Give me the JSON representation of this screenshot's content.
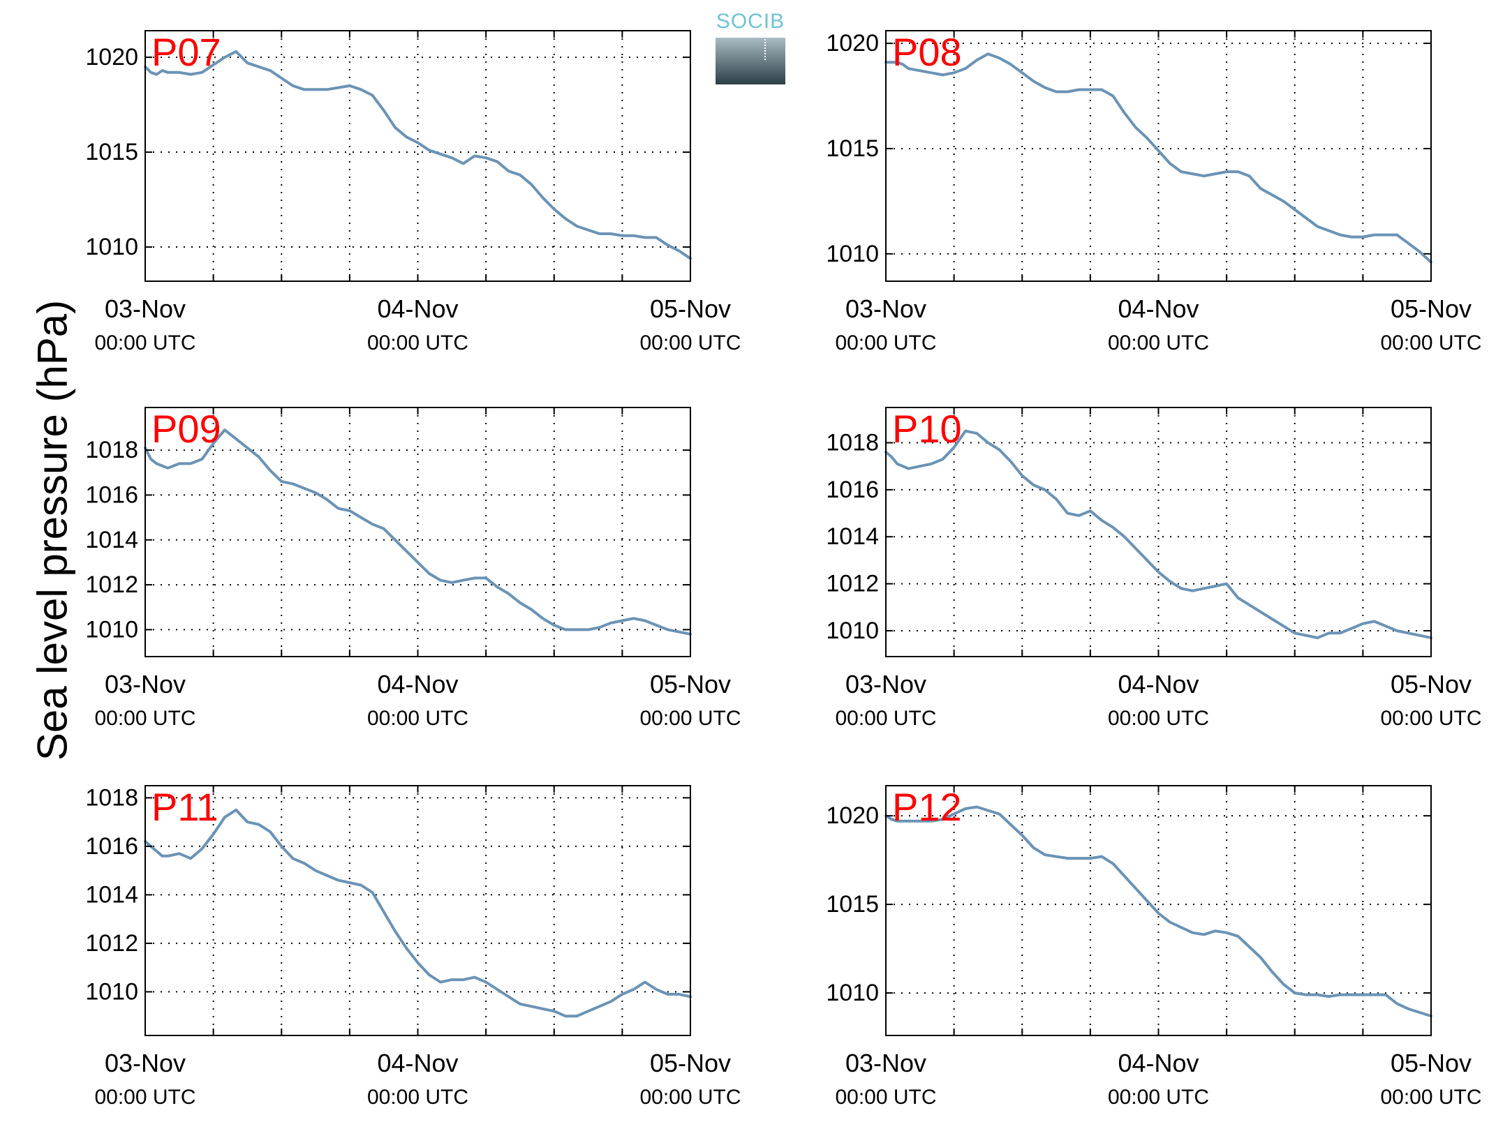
{
  "figure": {
    "ylabel": "Sea level pressure (hPa)",
    "logo_text": "SOCIB",
    "colors": {
      "line": "#6b93b5",
      "panel_label": "#ff0000",
      "grid": "#000000"
    }
  },
  "chart_data": [
    {
      "type": "line",
      "title": "P07",
      "ylim": [
        1008.2,
        1021.4
      ],
      "yticks": [
        1010,
        1015,
        1020
      ],
      "xlim": [
        0,
        48
      ],
      "xticks": [
        0,
        24,
        48
      ],
      "xtick_labels": [
        [
          "03-Nov",
          "00:00 UTC"
        ],
        [
          "04-Nov",
          "00:00 UTC"
        ],
        [
          "05-Nov",
          "00:00 UTC"
        ]
      ],
      "grid": true,
      "xlabel": "",
      "ylabel": "Sea level pressure (hPa)",
      "series": [
        {
          "x": [
            0,
            0.5,
            1,
            1.5,
            2,
            3,
            4,
            5,
            6,
            7,
            8,
            9,
            10,
            11,
            12,
            13,
            14,
            15,
            16,
            17,
            18,
            19,
            20,
            21,
            22,
            23,
            24,
            25,
            26,
            27,
            28,
            29,
            30,
            31,
            32,
            33,
            34,
            35,
            36,
            37,
            38,
            39,
            40,
            41,
            42,
            43,
            44,
            45,
            46,
            47,
            48
          ],
          "values": [
            1019.5,
            1019.2,
            1019.1,
            1019.3,
            1019.2,
            1019.2,
            1019.1,
            1019.2,
            1019.6,
            1020,
            1020.3,
            1019.7,
            1019.5,
            1019.3,
            1018.9,
            1018.5,
            1018.3,
            1018.3,
            1018.3,
            1018.4,
            1018.5,
            1018.3,
            1018,
            1017.2,
            1016.3,
            1015.8,
            1015.5,
            1015.1,
            1014.9,
            1014.7,
            1014.4,
            1014.8,
            1014.7,
            1014.5,
            1014,
            1013.8,
            1013.3,
            1012.6,
            1012,
            1011.5,
            1011.1,
            1010.9,
            1010.7,
            1010.7,
            1010.6,
            1010.6,
            1010.5,
            1010.5,
            1010.1,
            1009.8,
            1009.4
          ]
        }
      ]
    },
    {
      "type": "line",
      "title": "P08",
      "ylim": [
        1008.7,
        1020.6
      ],
      "yticks": [
        1010,
        1015,
        1020
      ],
      "xlim": [
        0,
        48
      ],
      "xticks": [
        0,
        24,
        48
      ],
      "xtick_labels": [
        [
          "03-Nov",
          "00:00 UTC"
        ],
        [
          "04-Nov",
          "00:00 UTC"
        ],
        [
          "05-Nov",
          "00:00 UTC"
        ]
      ],
      "grid": true,
      "xlabel": "",
      "ylabel": "Sea level pressure (hPa)",
      "series": [
        {
          "x": [
            0,
            0.5,
            1,
            1.5,
            2,
            3,
            4,
            5,
            6,
            7,
            8,
            9,
            10,
            11,
            12,
            13,
            14,
            15,
            16,
            17,
            18,
            19,
            20,
            21,
            22,
            23,
            24,
            25,
            26,
            27,
            28,
            29,
            30,
            31,
            32,
            33,
            34,
            35,
            36,
            37,
            38,
            39,
            40,
            41,
            42,
            43,
            44,
            45,
            46,
            47,
            48
          ],
          "values": [
            1019.1,
            1019.1,
            1019.1,
            1019,
            1018.8,
            1018.7,
            1018.6,
            1018.5,
            1018.6,
            1018.8,
            1019.2,
            1019.5,
            1019.3,
            1019,
            1018.6,
            1018.2,
            1017.9,
            1017.7,
            1017.7,
            1017.8,
            1017.8,
            1017.8,
            1017.5,
            1016.7,
            1016,
            1015.5,
            1014.9,
            1014.3,
            1013.9,
            1013.8,
            1013.7,
            1013.8,
            1013.9,
            1013.9,
            1013.7,
            1013.1,
            1012.8,
            1012.5,
            1012.1,
            1011.7,
            1011.3,
            1011.1,
            1010.9,
            1010.8,
            1010.8,
            1010.9,
            1010.9,
            1010.9,
            1010.5,
            1010.1,
            1009.6
          ]
        }
      ]
    },
    {
      "type": "line",
      "title": "P09",
      "ylim": [
        1008.8,
        1019.9
      ],
      "yticks": [
        1010,
        1012,
        1014,
        1016,
        1018
      ],
      "xlim": [
        0,
        48
      ],
      "xticks": [
        0,
        24,
        48
      ],
      "xtick_labels": [
        [
          "03-Nov",
          "00:00 UTC"
        ],
        [
          "04-Nov",
          "00:00 UTC"
        ],
        [
          "05-Nov",
          "00:00 UTC"
        ]
      ],
      "grid": true,
      "xlabel": "",
      "ylabel": "Sea level pressure (hPa)",
      "series": [
        {
          "x": [
            0,
            0.5,
            1,
            1.5,
            2,
            3,
            4,
            5,
            6,
            7,
            8,
            9,
            10,
            11,
            12,
            13,
            14,
            15,
            16,
            17,
            18,
            19,
            20,
            21,
            22,
            23,
            24,
            25,
            26,
            27,
            28,
            29,
            30,
            31,
            32,
            33,
            34,
            35,
            36,
            37,
            38,
            39,
            40,
            41,
            42,
            43,
            44,
            45,
            46,
            47,
            48
          ],
          "values": [
            1018.1,
            1017.6,
            1017.4,
            1017.3,
            1017.2,
            1017.4,
            1017.4,
            1017.6,
            1018.3,
            1018.9,
            1018.5,
            1018.1,
            1017.7,
            1017.1,
            1016.6,
            1016.5,
            1016.3,
            1016.1,
            1015.8,
            1015.4,
            1015.3,
            1015,
            1014.7,
            1014.5,
            1014,
            1013.5,
            1013,
            1012.5,
            1012.2,
            1012.1,
            1012.2,
            1012.3,
            1012.3,
            1011.9,
            1011.6,
            1011.2,
            1010.9,
            1010.5,
            1010.2,
            1010,
            1010,
            1010,
            1010.1,
            1010.3,
            1010.4,
            1010.5,
            1010.4,
            1010.2,
            1010,
            1009.9,
            1009.8
          ]
        }
      ]
    },
    {
      "type": "line",
      "title": "P10",
      "ylim": [
        1008.9,
        1019.5
      ],
      "yticks": [
        1010,
        1012,
        1014,
        1016,
        1018
      ],
      "xlim": [
        0,
        48
      ],
      "xticks": [
        0,
        24,
        48
      ],
      "xtick_labels": [
        [
          "03-Nov",
          "00:00 UTC"
        ],
        [
          "04-Nov",
          "00:00 UTC"
        ],
        [
          "05-Nov",
          "00:00 UTC"
        ]
      ],
      "grid": true,
      "xlabel": "",
      "ylabel": "Sea level pressure (hPa)",
      "series": [
        {
          "x": [
            0,
            0.5,
            1,
            1.5,
            2,
            3,
            4,
            5,
            6,
            7,
            8,
            9,
            10,
            11,
            12,
            13,
            14,
            15,
            16,
            17,
            18,
            19,
            20,
            21,
            22,
            23,
            24,
            25,
            26,
            27,
            28,
            29,
            30,
            31,
            32,
            33,
            34,
            35,
            36,
            37,
            38,
            39,
            40,
            41,
            42,
            43,
            44,
            45,
            46,
            47,
            48
          ],
          "values": [
            1017.6,
            1017.4,
            1017.1,
            1017,
            1016.9,
            1017,
            1017.1,
            1017.3,
            1017.8,
            1018.5,
            1018.4,
            1018,
            1017.7,
            1017.2,
            1016.6,
            1016.2,
            1016,
            1015.6,
            1015,
            1014.9,
            1015.1,
            1014.7,
            1014.4,
            1014,
            1013.5,
            1013,
            1012.5,
            1012.1,
            1011.8,
            1011.7,
            1011.8,
            1011.9,
            1012,
            1011.4,
            1011.1,
            1010.8,
            1010.5,
            1010.2,
            1009.9,
            1009.8,
            1009.7,
            1009.9,
            1009.9,
            1010.1,
            1010.3,
            1010.4,
            1010.2,
            1010,
            1009.9,
            1009.8,
            1009.7
          ]
        }
      ]
    },
    {
      "type": "line",
      "title": "P11",
      "ylim": [
        1008.2,
        1018.5
      ],
      "yticks": [
        1010,
        1012,
        1014,
        1016,
        1018
      ],
      "xlim": [
        0,
        48
      ],
      "xticks": [
        0,
        24,
        48
      ],
      "xtick_labels": [
        [
          "03-Nov",
          "00:00 UTC"
        ],
        [
          "04-Nov",
          "00:00 UTC"
        ],
        [
          "05-Nov",
          "00:00 UTC"
        ]
      ],
      "grid": true,
      "xlabel": "",
      "ylabel": "Sea level pressure (hPa)",
      "series": [
        {
          "x": [
            0,
            0.5,
            1,
            1.5,
            2,
            3,
            4,
            5,
            6,
            7,
            8,
            9,
            10,
            11,
            12,
            13,
            14,
            15,
            16,
            17,
            18,
            19,
            20,
            21,
            22,
            23,
            24,
            25,
            26,
            27,
            28,
            29,
            30,
            31,
            32,
            33,
            34,
            35,
            36,
            37,
            38,
            39,
            40,
            41,
            42,
            43,
            44,
            45,
            46,
            47,
            48
          ],
          "values": [
            1016.2,
            1016,
            1015.8,
            1015.6,
            1015.6,
            1015.7,
            1015.5,
            1015.9,
            1016.5,
            1017.2,
            1017.5,
            1017,
            1016.9,
            1016.6,
            1016,
            1015.5,
            1015.3,
            1015,
            1014.8,
            1014.6,
            1014.5,
            1014.4,
            1014.1,
            1013.3,
            1012.5,
            1011.8,
            1011.2,
            1010.7,
            1010.4,
            1010.5,
            1010.5,
            1010.6,
            1010.4,
            1010.1,
            1009.8,
            1009.5,
            1009.4,
            1009.3,
            1009.2,
            1009,
            1009,
            1009.2,
            1009.4,
            1009.6,
            1009.9,
            1010.1,
            1010.4,
            1010.1,
            1009.9,
            1009.9,
            1009.8
          ]
        }
      ]
    },
    {
      "type": "line",
      "title": "P12",
      "ylim": [
        1007.6,
        1021.7
      ],
      "yticks": [
        1010,
        1015,
        1020
      ],
      "xlim": [
        0,
        48
      ],
      "xticks": [
        0,
        24,
        48
      ],
      "xtick_labels": [
        [
          "03-Nov",
          "00:00 UTC"
        ],
        [
          "04-Nov",
          "00:00 UTC"
        ],
        [
          "05-Nov",
          "00:00 UTC"
        ]
      ],
      "grid": true,
      "xlabel": "",
      "ylabel": "Sea level pressure (hPa)",
      "series": [
        {
          "x": [
            0,
            0.5,
            1,
            1.5,
            2,
            3,
            4,
            5,
            6,
            7,
            8,
            9,
            10,
            11,
            12,
            13,
            14,
            15,
            16,
            17,
            18,
            19,
            20,
            21,
            22,
            23,
            24,
            25,
            26,
            27,
            28,
            29,
            30,
            31,
            32,
            33,
            34,
            35,
            36,
            37,
            38,
            39,
            40,
            41,
            42,
            43,
            44,
            45,
            46,
            47,
            48
          ],
          "values": [
            1020,
            1019.8,
            1019.7,
            1019.7,
            1019.7,
            1019.7,
            1019.7,
            1019.8,
            1020.1,
            1020.4,
            1020.5,
            1020.3,
            1020.1,
            1019.5,
            1018.9,
            1018.2,
            1017.8,
            1017.7,
            1017.6,
            1017.6,
            1017.6,
            1017.7,
            1017.3,
            1016.6,
            1015.9,
            1015.2,
            1014.5,
            1014,
            1013.7,
            1013.4,
            1013.3,
            1013.5,
            1013.4,
            1013.2,
            1012.6,
            1012,
            1011.2,
            1010.5,
            1010,
            1009.9,
            1009.9,
            1009.8,
            1009.9,
            1009.9,
            1009.9,
            1009.9,
            1009.9,
            1009.4,
            1009.1,
            1008.9,
            1008.7
          ]
        }
      ]
    }
  ]
}
